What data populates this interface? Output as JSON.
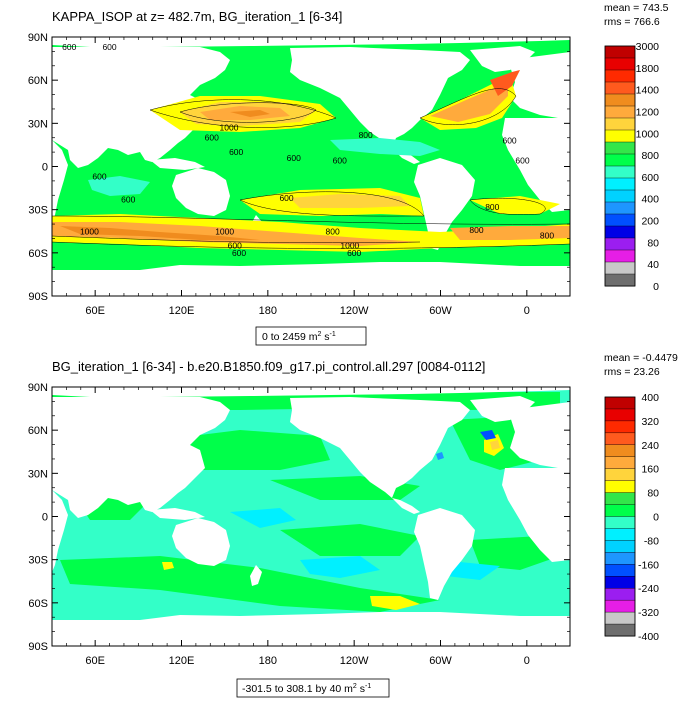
{
  "chart_data": [
    {
      "type": "heatmap",
      "title": "KAPPA_ISOP at z= 482.7m, BG_iteration_1 [6-34]",
      "stats": {
        "mean": "mean = 743.5",
        "rms": "rms = 766.6"
      },
      "range_label": "0 to 2459 m",
      "range_unit_tail": "s",
      "y_ticks": [
        "90N",
        "60N",
        "30N",
        "0",
        "30S",
        "60S",
        "90S"
      ],
      "x_ticks": [
        "60E",
        "120E",
        "180",
        "120W",
        "60W",
        "0"
      ],
      "ylim": [
        -90,
        90
      ],
      "xlim": [
        30,
        390
      ],
      "colorbar": {
        "labels": [
          "3000",
          "1800",
          "1400",
          "1200",
          "1000",
          "800",
          "600",
          "400",
          "200",
          "80",
          "40",
          "0"
        ],
        "colors": [
          "#c00000",
          "#e80000",
          "#ff2a00",
          "#ff5a1e",
          "#f08c1e",
          "#ffaa3c",
          "#ffd43c",
          "#ffff00",
          "#33e64a",
          "#00ff4a",
          "#33ffc8",
          "#00f0ff",
          "#00d2ff",
          "#1e96ff",
          "#0050ff",
          "#0000e6",
          "#9b1ef0",
          "#e61ee6",
          "#c8c8c8",
          "#6e6e6e"
        ]
      },
      "contour_labels": [
        {
          "text": "600",
          "lon": 42,
          "lat": 83
        },
        {
          "text": "600",
          "lon": 70,
          "lat": 83
        },
        {
          "text": "1000",
          "lon": 153,
          "lat": 27
        },
        {
          "text": "600",
          "lon": 141,
          "lat": 20
        },
        {
          "text": "600",
          "lon": 158,
          "lat": 10
        },
        {
          "text": "600",
          "lon": 198,
          "lat": 6
        },
        {
          "text": "600",
          "lon": 230,
          "lat": 4
        },
        {
          "text": "800",
          "lon": 248,
          "lat": 22
        },
        {
          "text": "600",
          "lon": 63,
          "lat": -7
        },
        {
          "text": "600",
          "lon": 83,
          "lat": -23
        },
        {
          "text": "600",
          "lon": 193,
          "lat": -22
        },
        {
          "text": "1000",
          "lon": 56,
          "lat": -45
        },
        {
          "text": "1000",
          "lon": 150,
          "lat": -45
        },
        {
          "text": "600",
          "lon": 157,
          "lat": -55
        },
        {
          "text": "800",
          "lon": 225,
          "lat": -45
        },
        {
          "text": "1000",
          "lon": 237,
          "lat": -55
        },
        {
          "text": "600",
          "lon": 240,
          "lat": -60
        },
        {
          "text": "800",
          "lon": 336,
          "lat": -28
        },
        {
          "text": "800",
          "lon": 325,
          "lat": -44
        },
        {
          "text": "800",
          "lon": 374,
          "lat": -48
        },
        {
          "text": "600",
          "lon": 357,
          "lat": 4
        },
        {
          "text": "600",
          "lon": 348,
          "lat": 18
        },
        {
          "text": "600",
          "lon": 160,
          "lat": -60
        }
      ]
    },
    {
      "type": "heatmap",
      "title": "BG_iteration_1 [6-34] - b.e20.B1850.f09_g17.pi_control.all.297 [0084-0112]",
      "stats": {
        "mean": "mean = -0.4479",
        "rms": "rms = 23.26"
      },
      "range_label": "-301.5 to 308.1 by 40 m",
      "range_unit_tail": "s",
      "y_ticks": [
        "90N",
        "60N",
        "30N",
        "0",
        "30S",
        "60S",
        "90S"
      ],
      "x_ticks": [
        "60E",
        "120E",
        "180",
        "120W",
        "60W",
        "0"
      ],
      "ylim": [
        -90,
        90
      ],
      "xlim": [
        30,
        390
      ],
      "colorbar": {
        "labels": [
          "400",
          "320",
          "240",
          "160",
          "80",
          "0",
          "-80",
          "-160",
          "-240",
          "-320",
          "-400"
        ],
        "colors": [
          "#c00000",
          "#e80000",
          "#ff2a00",
          "#ff5a1e",
          "#f08c1e",
          "#ffaa3c",
          "#ffd43c",
          "#ffff00",
          "#33e64a",
          "#00ff4a",
          "#33ffc8",
          "#00f0ff",
          "#00d2ff",
          "#1e96ff",
          "#0050ff",
          "#0000e6",
          "#9b1ef0",
          "#e61ee6",
          "#c8c8c8",
          "#6e6e6e"
        ]
      }
    }
  ]
}
